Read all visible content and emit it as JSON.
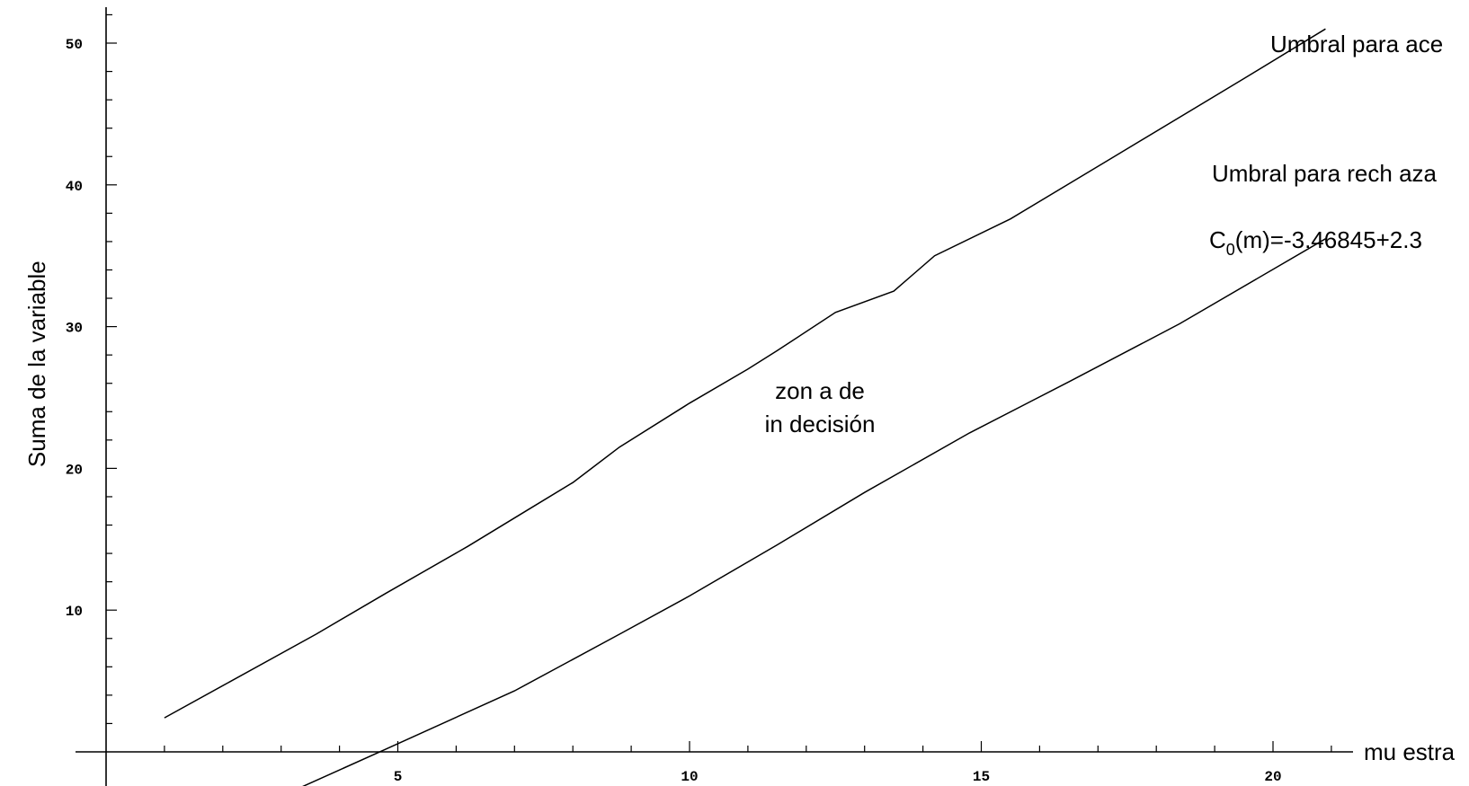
{
  "chart_data": {
    "type": "line",
    "title": "",
    "xlabel": "mu estra",
    "ylabel": "Suma de la variable",
    "xlim": [
      -0.1,
      21.5
    ],
    "ylim": [
      -2.5,
      52.5
    ],
    "x_ticks": [
      5,
      10,
      15,
      20
    ],
    "y_ticks": [
      10,
      20,
      30,
      40,
      50
    ],
    "x_minor_step": 1,
    "y_minor_step": 2,
    "grid": false,
    "series": [
      {
        "name": "Umbral para ace",
        "x": [
          1,
          3.6,
          4.8,
          6.2,
          7.2,
          8,
          8.8,
          10,
          11,
          11.5,
          12.5,
          13.5,
          14.2,
          15.5,
          17.2,
          19.5,
          20.9
        ],
        "y": [
          2.4,
          8.3,
          11.2,
          14.5,
          17,
          19,
          21.5,
          24.6,
          27,
          28.3,
          31,
          32.5,
          35,
          37.6,
          41.8,
          47.5,
          51
        ]
      },
      {
        "name": "Umbral para rech aza",
        "x": [
          2.8,
          4.8,
          7,
          8.8,
          10,
          11.5,
          13,
          14.8,
          16.5,
          18.4,
          20.9
        ],
        "y": [
          -3.5,
          0.2,
          4.3,
          8.3,
          11,
          14.6,
          18.3,
          22.5,
          26.1,
          30.2,
          36.2
        ]
      }
    ],
    "annotations": [
      {
        "text": "Umbral para ace"
      },
      {
        "text": "Umbral para rech aza"
      },
      {
        "text": "C",
        "sub": "0",
        "rest": "(m)=-3.46845+2.3"
      },
      {
        "lines": [
          "zon a de",
          "in decisión"
        ]
      }
    ]
  }
}
